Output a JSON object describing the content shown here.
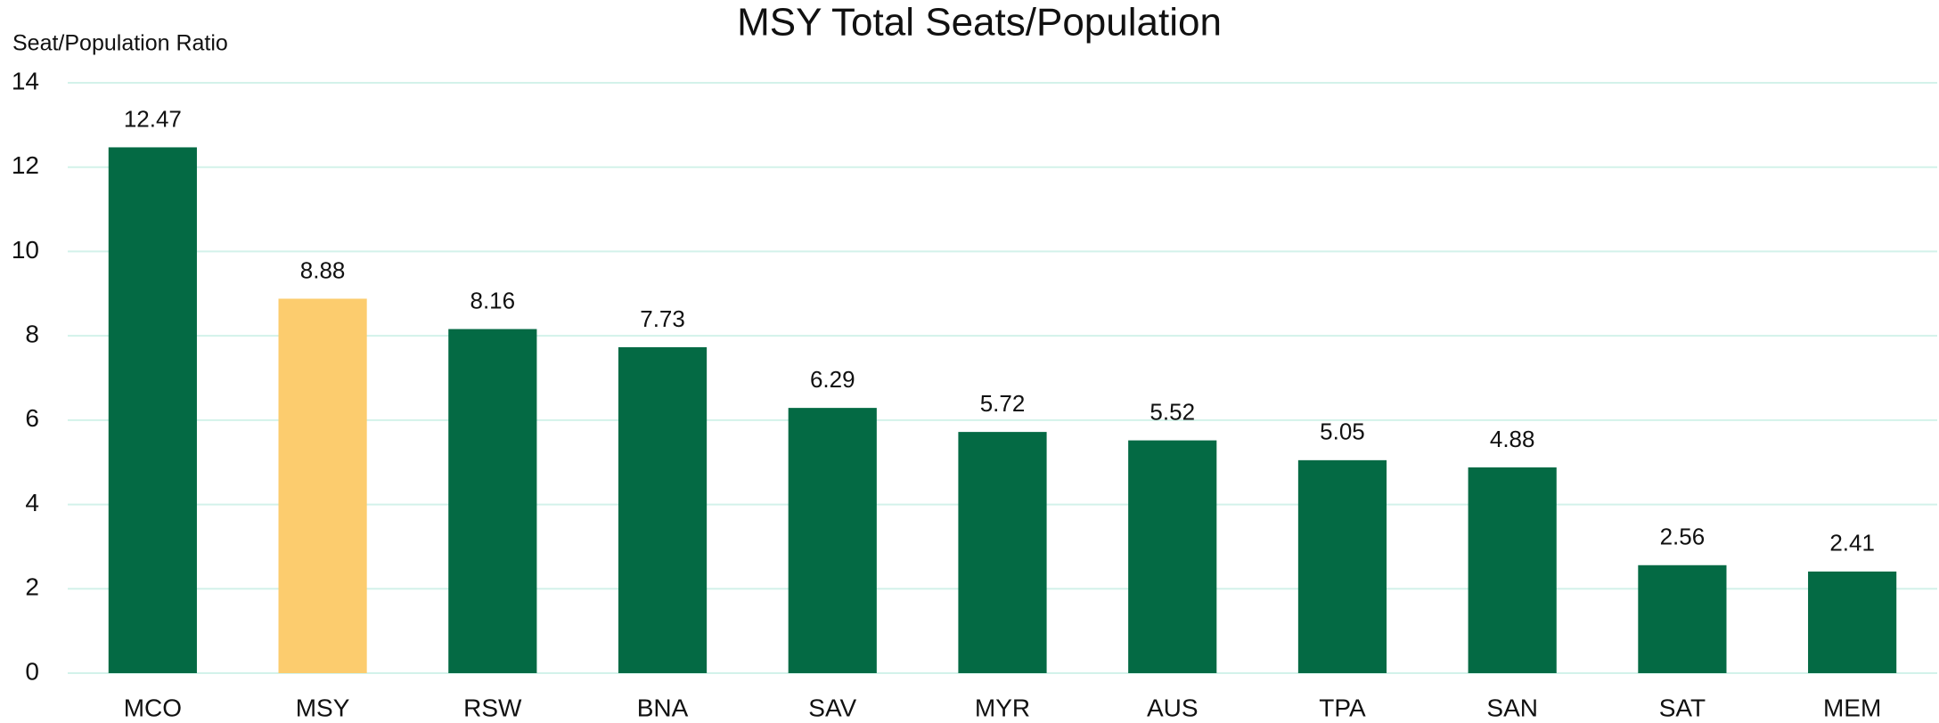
{
  "chart_data": {
    "type": "bar",
    "title": "MSY Total Seats/Population",
    "y_label": "Seat/Population Ratio",
    "categories": [
      "MCO",
      "MSY",
      "RSW",
      "BNA",
      "SAV",
      "MYR",
      "AUS",
      "TPA",
      "SAN",
      "SAT",
      "MEM"
    ],
    "values": [
      12.47,
      8.88,
      8.16,
      7.73,
      6.29,
      5.72,
      5.52,
      5.05,
      4.88,
      2.56,
      2.41
    ],
    "colors": [
      "#046a44",
      "#fccc6e",
      "#046a44",
      "#046a44",
      "#046a44",
      "#046a44",
      "#046a44",
      "#046a44",
      "#046a44",
      "#046a44",
      "#046a44"
    ],
    "ylim": [
      0,
      14
    ],
    "yticks": [
      0,
      2,
      4,
      6,
      8,
      10,
      12,
      14
    ],
    "grid": true
  }
}
